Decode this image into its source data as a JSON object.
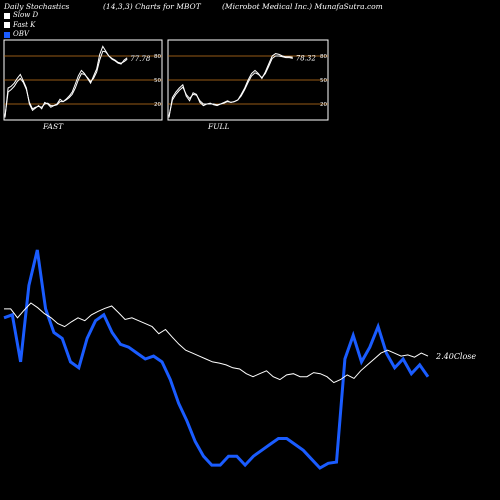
{
  "header": {
    "left": "Daily Stochastics",
    "mid": "(14,3,3) Charts for MBOT",
    "right": "(Microbot Medical Inc.) MunafaSutra.com"
  },
  "legend": [
    {
      "label": "Slow  D",
      "color": "#ffffff"
    },
    {
      "label": "Fast K",
      "color": "#ffffff"
    },
    {
      "label": "OBV",
      "color": "#1a5cff"
    }
  ],
  "colors": {
    "obv": "#1a5cff",
    "price": "#ffffff",
    "level": "#c8781e",
    "panel_border": "#ffffff"
  },
  "chart_data": [
    {
      "type": "line",
      "title": "FAST",
      "ylim": [
        0,
        100
      ],
      "levels": [
        20,
        50,
        80
      ],
      "level_labels": [
        "20",
        "50",
        "80"
      ],
      "last_value_label": "77.78",
      "series": [
        {
          "values": [
            3,
            40,
            42,
            46,
            52,
            57,
            49,
            40,
            20,
            12,
            15,
            18,
            14,
            22,
            20,
            16,
            18,
            20,
            26,
            23,
            26,
            30,
            35,
            45,
            55,
            62,
            58,
            52,
            46,
            55,
            64,
            82,
            92,
            86,
            80,
            76,
            74,
            71,
            70,
            75,
            77.78
          ]
        },
        {
          "values": [
            5,
            35,
            38,
            42,
            48,
            52,
            47,
            38,
            22,
            14,
            16,
            17,
            16,
            20,
            21,
            18,
            18,
            19,
            23,
            23,
            25,
            28,
            32,
            40,
            50,
            58,
            57,
            53,
            48,
            52,
            60,
            75,
            86,
            85,
            80,
            77,
            75,
            72,
            71,
            73,
            76
          ]
        }
      ]
    },
    {
      "type": "line",
      "title": "FULL",
      "ylim": [
        0,
        100
      ],
      "levels": [
        20,
        50,
        80
      ],
      "level_labels": [
        "20",
        "50",
        "80"
      ],
      "last_value_label": "78.32",
      "series": [
        {
          "values": [
            3,
            28,
            35,
            40,
            44,
            30,
            24,
            34,
            32,
            22,
            18,
            20,
            21,
            19,
            18,
            20,
            22,
            24,
            22,
            23,
            25,
            32,
            40,
            50,
            58,
            62,
            58,
            52,
            60,
            70,
            80,
            83,
            82,
            80,
            79,
            79,
            78.32
          ]
        },
        {
          "values": [
            5,
            25,
            32,
            37,
            41,
            32,
            27,
            32,
            31,
            24,
            20,
            20,
            20,
            20,
            19,
            20,
            21,
            23,
            22,
            23,
            25,
            30,
            38,
            47,
            55,
            59,
            57,
            53,
            58,
            67,
            77,
            80,
            80,
            79,
            78,
            78,
            77
          ]
        }
      ]
    },
    {
      "type": "line",
      "price_label": "2.40",
      "close_label": "Close",
      "series": [
        {
          "values": [
            3.2,
            3.2,
            3.05,
            3.18,
            3.3,
            3.22,
            3.12,
            3.05,
            2.95,
            2.9,
            2.98,
            3.05,
            3.0,
            3.1,
            3.16,
            3.21,
            3.25,
            3.14,
            3.02,
            3.05,
            3.0,
            2.95,
            2.9,
            2.78,
            2.85,
            2.72,
            2.6,
            2.5,
            2.45,
            2.4,
            2.35,
            2.3,
            2.28,
            2.25,
            2.2,
            2.18,
            2.1,
            2.05,
            2.1,
            2.15,
            2.05,
            2.0,
            2.08,
            2.1,
            2.05,
            2.05,
            2.12,
            2.1,
            2.05,
            1.95,
            2.0,
            2.08,
            2.02,
            2.15,
            2.25,
            2.35,
            2.45,
            2.5,
            2.45,
            2.4,
            2.42,
            2.38,
            2.45,
            2.4
          ]
        },
        {
          "values": [
            3.05,
            3.1,
            2.3,
            3.6,
            4.2,
            3.2,
            2.8,
            2.7,
            2.3,
            2.2,
            2.7,
            3.0,
            3.1,
            2.8,
            2.6,
            2.55,
            2.45,
            2.35,
            2.4,
            2.3,
            2.0,
            1.6,
            1.3,
            0.95,
            0.7,
            0.55,
            0.55,
            0.7,
            0.7,
            0.55,
            0.7,
            0.8,
            0.9,
            1.0,
            1.0,
            0.9,
            0.8,
            0.65,
            0.5,
            0.58,
            0.6,
            2.35,
            2.75,
            2.3,
            2.55,
            2.9,
            2.45,
            2.2,
            2.35,
            2.1,
            2.25,
            2.05
          ]
        }
      ]
    }
  ]
}
